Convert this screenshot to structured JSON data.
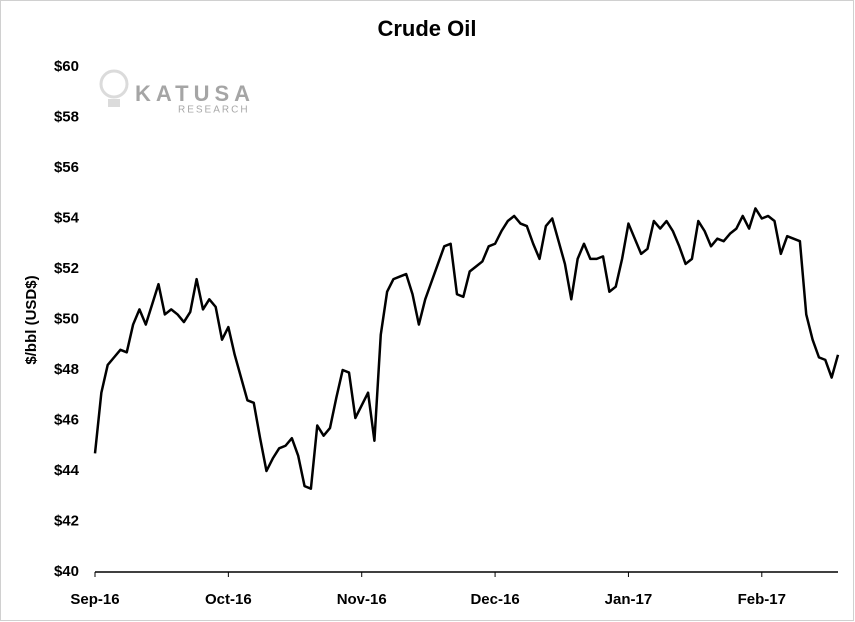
{
  "chart_data": {
    "type": "line",
    "title": "Crude Oil",
    "y_label": "$/bbl (USD$)",
    "watermark": [
      "KATUSA",
      "RESEARCH"
    ],
    "categories": [
      "Sep-16",
      null,
      null,
      null,
      null,
      null,
      null,
      null,
      null,
      null,
      null,
      null,
      null,
      null,
      null,
      null,
      null,
      null,
      null,
      null,
      null,
      "Oct-16",
      null,
      null,
      null,
      null,
      null,
      null,
      null,
      null,
      null,
      null,
      null,
      null,
      null,
      null,
      null,
      null,
      null,
      null,
      null,
      null,
      "Nov-16",
      null,
      null,
      null,
      null,
      null,
      null,
      null,
      null,
      null,
      null,
      null,
      null,
      null,
      null,
      null,
      null,
      null,
      null,
      null,
      null,
      "Dec-16",
      null,
      null,
      null,
      null,
      null,
      null,
      null,
      null,
      null,
      null,
      null,
      null,
      null,
      null,
      null,
      null,
      null,
      null,
      null,
      null,
      "Jan-17",
      null,
      null,
      null,
      null,
      null,
      null,
      null,
      null,
      null,
      null,
      null,
      null,
      null,
      null,
      null,
      null,
      null,
      null,
      null,
      null,
      "Feb-17",
      null,
      null,
      null,
      null,
      null,
      null,
      null,
      null,
      null,
      null,
      null,
      null
    ],
    "values": [
      44.7,
      47.1,
      48.2,
      48.5,
      48.8,
      48.7,
      49.8,
      50.4,
      49.8,
      50.6,
      51.4,
      50.2,
      50.4,
      50.2,
      49.9,
      50.3,
      51.6,
      50.4,
      50.8,
      50.5,
      49.2,
      49.7,
      48.6,
      47.7,
      46.8,
      46.7,
      45.3,
      44.0,
      44.5,
      44.9,
      45.0,
      45.3,
      44.6,
      43.4,
      43.3,
      45.8,
      45.4,
      45.7,
      46.9,
      48.0,
      47.9,
      46.1,
      46.6,
      47.1,
      45.2,
      49.4,
      51.1,
      51.6,
      51.7,
      51.8,
      51.0,
      49.8,
      50.8,
      51.5,
      52.2,
      52.9,
      53.0,
      51.0,
      50.9,
      51.9,
      52.1,
      52.3,
      52.9,
      53.0,
      53.5,
      53.9,
      54.1,
      53.8,
      53.7,
      53.0,
      52.4,
      53.7,
      54.0,
      53.1,
      52.2,
      50.8,
      52.4,
      53.0,
      52.4,
      52.4,
      52.5,
      51.1,
      51.3,
      52.4,
      53.8,
      53.2,
      52.6,
      52.8,
      53.9,
      53.6,
      53.9,
      53.5,
      52.9,
      52.2,
      52.4,
      53.9,
      53.5,
      52.9,
      53.2,
      53.1,
      53.4,
      53.6,
      54.1,
      53.6,
      54.4,
      54.0,
      54.1,
      53.9,
      52.6,
      53.3,
      53.2,
      53.1,
      50.2,
      49.2,
      48.5,
      48.4,
      47.7,
      48.6
    ],
    "color": "#000000",
    "ylim": [
      40,
      60
    ],
    "yticks": [
      {
        "value": 40,
        "label": "$40"
      },
      {
        "value": 42,
        "label": "$42"
      },
      {
        "value": 44,
        "label": "$44"
      },
      {
        "value": 46,
        "label": "$46"
      },
      {
        "value": 48,
        "label": "$48"
      },
      {
        "value": 50,
        "label": "$50"
      },
      {
        "value": 52,
        "label": "$52"
      },
      {
        "value": 54,
        "label": "$54"
      },
      {
        "value": 56,
        "label": "$56"
      },
      {
        "value": 58,
        "label": "$58"
      },
      {
        "value": 60,
        "label": "$60"
      }
    ],
    "grid": false
  }
}
